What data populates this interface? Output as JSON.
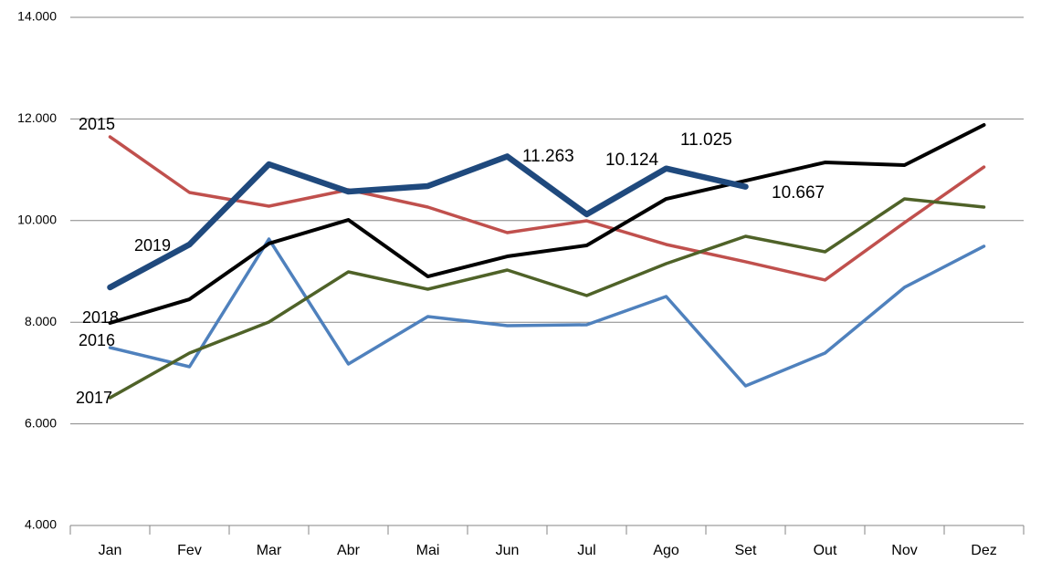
{
  "chart_data": {
    "type": "line",
    "categories": [
      "Jan",
      "Fev",
      "Mar",
      "Abr",
      "Mai",
      "Jun",
      "Jul",
      "Ago",
      "Set",
      "Out",
      "Nov",
      "Dez"
    ],
    "series": [
      {
        "name": "2015",
        "color": "#c0504d",
        "values": [
          11648,
          10553,
          10284,
          10607,
          10266,
          9763,
          9996,
          9530,
          9189,
          8830,
          9960,
          11055
        ]
      },
      {
        "name": "2016",
        "color": "#4f81bd",
        "values": [
          7501,
          7124,
          9637,
          7178,
          8111,
          7932,
          7950,
          8506,
          6747,
          7393,
          8686,
          9494
        ]
      },
      {
        "name": "2017",
        "color": "#4f6228",
        "values": [
          6513,
          7393,
          8004,
          8991,
          8650,
          9027,
          8524,
          9153,
          9691,
          9386,
          10427,
          10266
        ]
      },
      {
        "name": "2018",
        "color": "#000000",
        "values": [
          7986,
          8452,
          9548,
          10014,
          8901,
          9296,
          9512,
          10427,
          10786,
          11145,
          11092,
          11882
        ]
      },
      {
        "name": "2019",
        "color": "#1f497d",
        "values": [
          8686,
          9530,
          11109,
          10571,
          10679,
          11263,
          10124,
          11025,
          10667,
          null,
          null,
          null
        ],
        "value_labels": [
          null,
          null,
          null,
          null,
          null,
          "11.263",
          "10.124",
          "11.025",
          "10.667",
          null,
          null,
          null
        ]
      }
    ],
    "ylim": [
      4000,
      14000
    ],
    "yticks": [
      {
        "value": 4000,
        "label": "4.000"
      },
      {
        "value": 6000,
        "label": "6.000"
      },
      {
        "value": 8000,
        "label": "8.000"
      },
      {
        "value": 10000,
        "label": "10.000"
      },
      {
        "value": 12000,
        "label": "12.000"
      },
      {
        "value": 14000,
        "label": "14.000"
      }
    ],
    "grid": true
  }
}
